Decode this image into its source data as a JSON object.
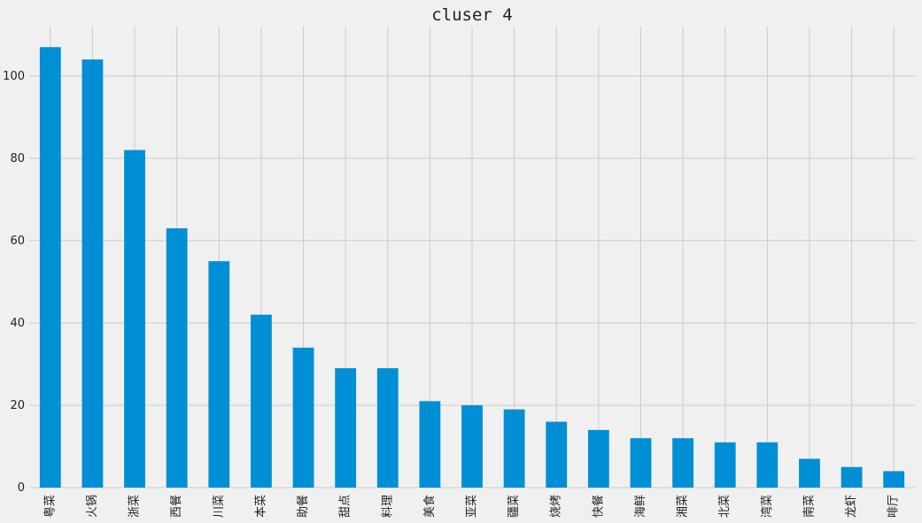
{
  "chart_data": {
    "type": "bar",
    "title": "cluser 4",
    "xlabel": "",
    "ylabel": "",
    "categories": [
      "粤菜",
      "火锅",
      "浙菜",
      "西餐",
      "川菜",
      "本菜",
      "助餐",
      "甜点",
      "料理",
      "美食",
      "亚菜",
      "疆菜",
      "烧烤",
      "快餐",
      "海鲜",
      "湘菜",
      "北菜",
      "湾菜",
      "南菜",
      "龙虾",
      "啡厅"
    ],
    "values": [
      107,
      104,
      82,
      63,
      55,
      42,
      34,
      29,
      29,
      21,
      20,
      19,
      16,
      14,
      12,
      12,
      11,
      11,
      7,
      5,
      4
    ],
    "ylim": [
      0,
      112
    ],
    "yticks": [
      0,
      20,
      40,
      60,
      80,
      100
    ],
    "grid": true,
    "colors": {
      "bar": "#008fd5",
      "background": "#f0f0f0",
      "grid": "#cbcbcb"
    }
  }
}
